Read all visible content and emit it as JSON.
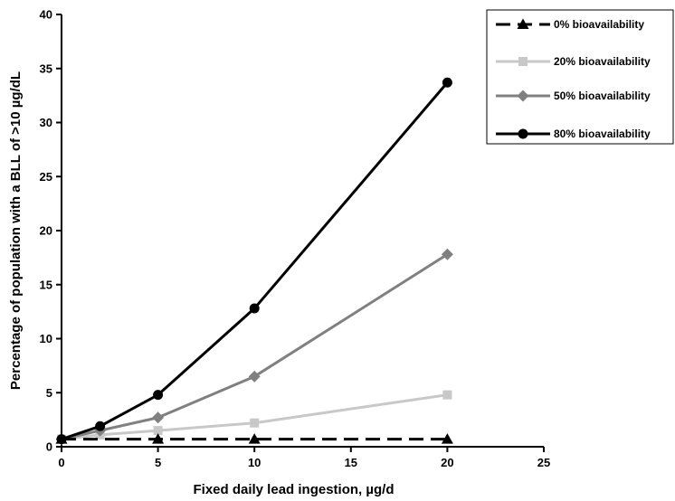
{
  "chart_data": {
    "type": "line",
    "title": "",
    "xlabel": "Fixed daily lead ingestion, µg/d",
    "ylabel": "Percentage of population with a BLL of >10 µg/dL",
    "xlim": [
      0,
      25
    ],
    "ylim": [
      0,
      40
    ],
    "x_ticks": [
      "0",
      "5",
      "10",
      "15",
      "20",
      "25"
    ],
    "y_ticks": [
      "0",
      "5",
      "10",
      "15",
      "20",
      "25",
      "30",
      "35",
      "40"
    ],
    "grid": false,
    "legend_position": "top-right",
    "x": [
      0,
      2,
      5,
      10,
      20
    ],
    "series": [
      {
        "name": "0% bioavailability",
        "values": [
          0.7,
          0.7,
          0.7,
          0.7,
          0.7
        ],
        "color": "#000000",
        "marker": "triangle",
        "dash": true
      },
      {
        "name": "20% bioavailability",
        "values": [
          0.7,
          1.1,
          1.5,
          2.2,
          4.8
        ],
        "color": "#c8c8c8",
        "marker": "square",
        "dash": false
      },
      {
        "name": "50% bioavailability",
        "values": [
          0.7,
          1.5,
          2.7,
          6.5,
          17.8
        ],
        "color": "#808080",
        "marker": "diamond",
        "dash": false
      },
      {
        "name": "80% bioavailability",
        "values": [
          0.7,
          1.9,
          4.8,
          12.8,
          33.7
        ],
        "color": "#000000",
        "marker": "circle",
        "dash": false
      }
    ]
  }
}
